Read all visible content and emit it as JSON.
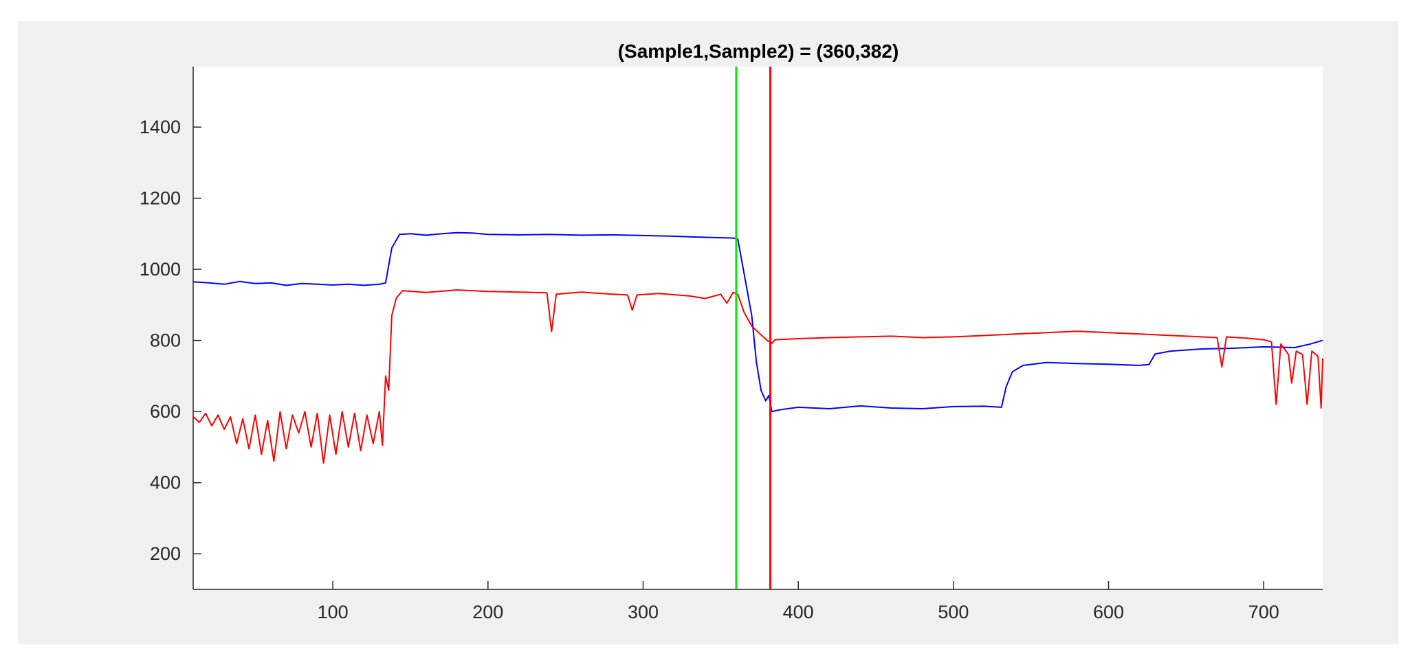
{
  "chart_data": {
    "type": "line",
    "title": "(Sample1,Sample2) = (360,382)",
    "xlabel": "",
    "ylabel": "",
    "xlim": [
      10,
      738
    ],
    "ylim": [
      100,
      1570
    ],
    "x_ticks": [
      100,
      200,
      300,
      400,
      500,
      600,
      700
    ],
    "y_ticks": [
      200,
      400,
      600,
      800,
      1000,
      1200,
      1400
    ],
    "grid": false,
    "legend": "none",
    "markers": [
      {
        "x": 360,
        "color": "#00ee00"
      },
      {
        "x": 382,
        "color": "#ff0000"
      }
    ],
    "series": [
      {
        "color": "#0000ff",
        "points": [
          [
            10,
            965
          ],
          [
            20,
            962
          ],
          [
            30,
            958
          ],
          [
            40,
            966
          ],
          [
            50,
            960
          ],
          [
            60,
            962
          ],
          [
            70,
            955
          ],
          [
            80,
            960
          ],
          [
            90,
            958
          ],
          [
            100,
            956
          ],
          [
            110,
            958
          ],
          [
            120,
            955
          ],
          [
            130,
            958
          ],
          [
            134,
            962
          ],
          [
            138,
            1060
          ],
          [
            143,
            1098
          ],
          [
            150,
            1100
          ],
          [
            160,
            1096
          ],
          [
            170,
            1100
          ],
          [
            180,
            1103
          ],
          [
            190,
            1102
          ],
          [
            200,
            1098
          ],
          [
            220,
            1097
          ],
          [
            240,
            1098
          ],
          [
            260,
            1096
          ],
          [
            280,
            1097
          ],
          [
            300,
            1095
          ],
          [
            320,
            1093
          ],
          [
            340,
            1090
          ],
          [
            358,
            1088
          ],
          [
            361,
            1085
          ],
          [
            365,
            990
          ],
          [
            370,
            870
          ],
          [
            373,
            740
          ],
          [
            376,
            660
          ],
          [
            379,
            630
          ],
          [
            381,
            645
          ],
          [
            383,
            600
          ],
          [
            388,
            605
          ],
          [
            400,
            612
          ],
          [
            420,
            608
          ],
          [
            440,
            616
          ],
          [
            460,
            610
          ],
          [
            480,
            608
          ],
          [
            500,
            614
          ],
          [
            520,
            615
          ],
          [
            531,
            612
          ],
          [
            534,
            670
          ],
          [
            538,
            712
          ],
          [
            545,
            730
          ],
          [
            560,
            738
          ],
          [
            580,
            735
          ],
          [
            600,
            733
          ],
          [
            620,
            730
          ],
          [
            626,
            732
          ],
          [
            630,
            762
          ],
          [
            640,
            770
          ],
          [
            660,
            776
          ],
          [
            680,
            778
          ],
          [
            700,
            782
          ],
          [
            720,
            780
          ],
          [
            730,
            790
          ],
          [
            738,
            800
          ]
        ]
      },
      {
        "color": "#ff0000",
        "points": [
          [
            10,
            585
          ],
          [
            14,
            570
          ],
          [
            18,
            595
          ],
          [
            22,
            560
          ],
          [
            26,
            590
          ],
          [
            30,
            550
          ],
          [
            34,
            585
          ],
          [
            38,
            510
          ],
          [
            42,
            580
          ],
          [
            46,
            495
          ],
          [
            50,
            590
          ],
          [
            54,
            480
          ],
          [
            58,
            575
          ],
          [
            62,
            460
          ],
          [
            66,
            600
          ],
          [
            70,
            495
          ],
          [
            74,
            590
          ],
          [
            78,
            540
          ],
          [
            82,
            600
          ],
          [
            86,
            500
          ],
          [
            90,
            595
          ],
          [
            94,
            455
          ],
          [
            98,
            590
          ],
          [
            102,
            480
          ],
          [
            106,
            600
          ],
          [
            110,
            500
          ],
          [
            114,
            595
          ],
          [
            118,
            490
          ],
          [
            122,
            590
          ],
          [
            126,
            510
          ],
          [
            130,
            600
          ],
          [
            132,
            505
          ],
          [
            134,
            700
          ],
          [
            136,
            660
          ],
          [
            138,
            870
          ],
          [
            141,
            920
          ],
          [
            145,
            940
          ],
          [
            160,
            935
          ],
          [
            180,
            942
          ],
          [
            200,
            938
          ],
          [
            220,
            936
          ],
          [
            238,
            934
          ],
          [
            241,
            825
          ],
          [
            244,
            930
          ],
          [
            260,
            936
          ],
          [
            280,
            930
          ],
          [
            290,
            928
          ],
          [
            293,
            885
          ],
          [
            296,
            928
          ],
          [
            310,
            932
          ],
          [
            330,
            925
          ],
          [
            340,
            918
          ],
          [
            350,
            930
          ],
          [
            354,
            905
          ],
          [
            358,
            935
          ],
          [
            361,
            930
          ],
          [
            365,
            880
          ],
          [
            370,
            840
          ],
          [
            375,
            820
          ],
          [
            380,
            800
          ],
          [
            383,
            792
          ],
          [
            385,
            802
          ],
          [
            400,
            805
          ],
          [
            420,
            808
          ],
          [
            440,
            810
          ],
          [
            460,
            812
          ],
          [
            480,
            808
          ],
          [
            500,
            810
          ],
          [
            520,
            814
          ],
          [
            540,
            818
          ],
          [
            560,
            822
          ],
          [
            580,
            826
          ],
          [
            600,
            822
          ],
          [
            620,
            818
          ],
          [
            640,
            814
          ],
          [
            660,
            810
          ],
          [
            670,
            808
          ],
          [
            673,
            725
          ],
          [
            676,
            810
          ],
          [
            690,
            806
          ],
          [
            700,
            802
          ],
          [
            705,
            796
          ],
          [
            708,
            620
          ],
          [
            711,
            790
          ],
          [
            716,
            760
          ],
          [
            718,
            680
          ],
          [
            721,
            770
          ],
          [
            725,
            760
          ],
          [
            728,
            620
          ],
          [
            731,
            770
          ],
          [
            735,
            755
          ],
          [
            737,
            610
          ],
          [
            738,
            750
          ]
        ]
      }
    ]
  }
}
